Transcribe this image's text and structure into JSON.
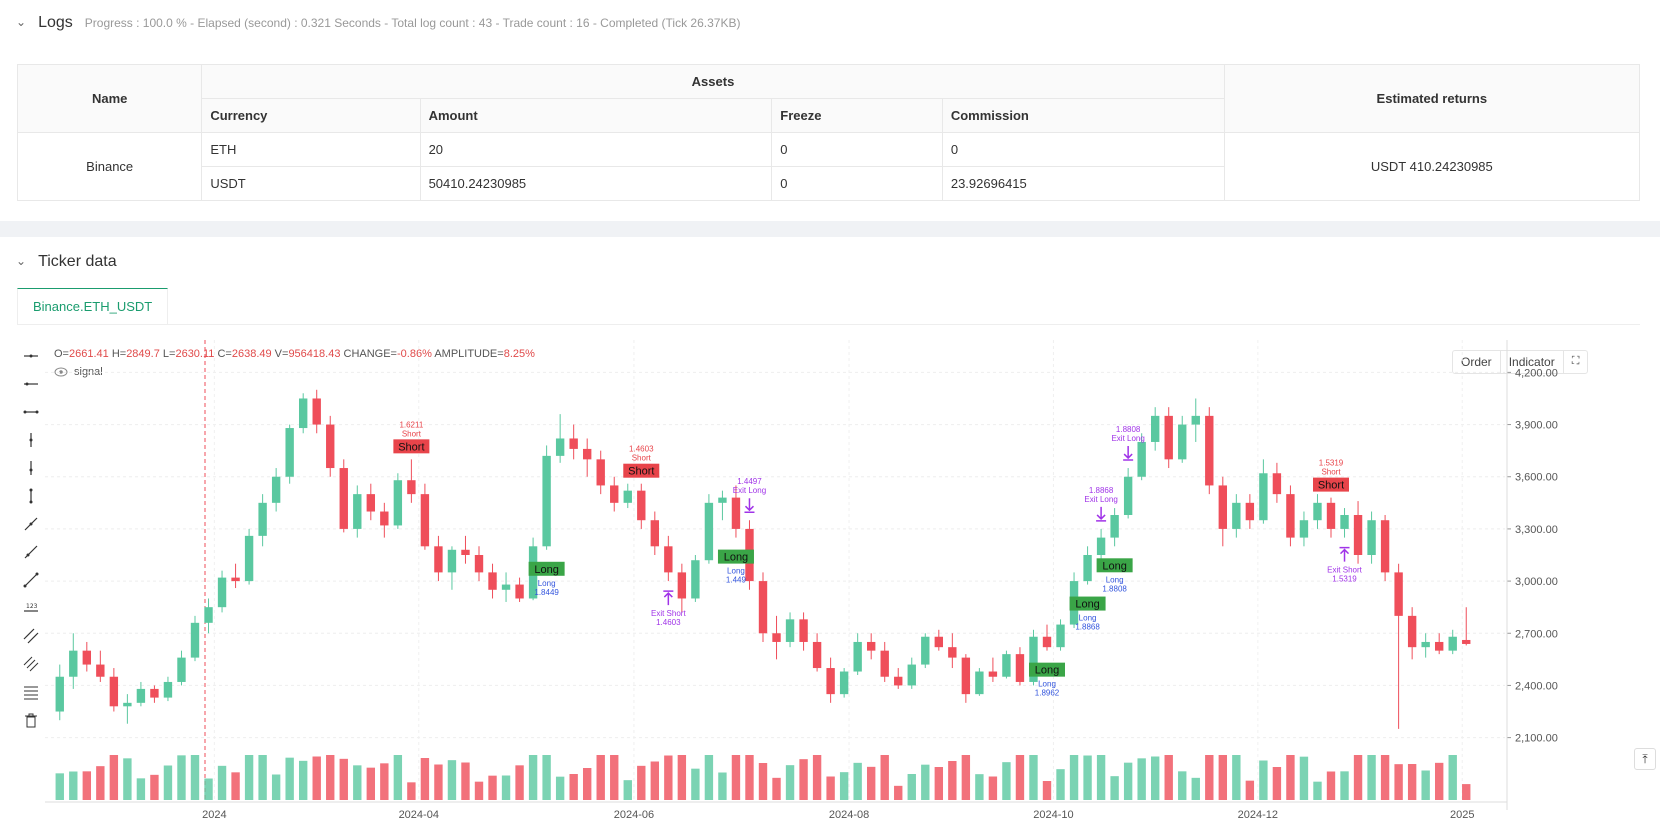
{
  "logs": {
    "title": "Logs",
    "summary": "Progress : 100.0 % - Elapsed (second) : 0.321  Seconds - Total log count : 43 - Trade count : 16 - Completed (Tick 26.37KB)"
  },
  "assets_table": {
    "name_header": "Name",
    "assets_header": "Assets",
    "returns_header": "Estimated returns",
    "columns": [
      "Currency",
      "Amount",
      "Freeze",
      "Commission"
    ],
    "exchange": "Binance",
    "rows": [
      {
        "currency": "ETH",
        "amount": "20",
        "freeze": "0",
        "commission": "0"
      },
      {
        "currency": "USDT",
        "amount": "50410.24230985",
        "freeze": "0",
        "commission": "23.92696415"
      }
    ],
    "estimated_returns": "USDT 410.24230985"
  },
  "ticker": {
    "title": "Ticker data",
    "tab": "Binance.ETH_USDT"
  },
  "ohlc": {
    "o_label": "O=",
    "o": "2661.41",
    "h_label": "H=",
    "h": "2849.7",
    "l_label": "L=",
    "l": "2630.11",
    "c_label": "C=",
    "c": "2638.49",
    "v_label": "V=",
    "v": "956418.43",
    "change_label": "CHANGE=",
    "change": "-0.86%",
    "amp_label": "AMPLITUDE=",
    "amp": "8.25%"
  },
  "signal_label": "signal",
  "chart_buttons": [
    "Order",
    "Indicator"
  ],
  "colors": {
    "up": "#5ac8a0",
    "down": "#ef4e5a",
    "long": "#3aa547",
    "short": "#e8444a",
    "exit": "#a033e8",
    "accent": "#1a9c6e"
  },
  "chart_data": {
    "type": "candlestick",
    "x_ticks": [
      "2024",
      "2024-04",
      "2024-06",
      "2024-08",
      "2024-10",
      "2024-12",
      "2025"
    ],
    "y_ticks": [
      "4,200.00",
      "3,900.00",
      "3,600.00",
      "3,300.00",
      "3,000.00",
      "2,700.00",
      "2,400.00",
      "2,100.00"
    ],
    "ylim": [
      2000,
      4300
    ],
    "series": [
      {
        "t": 0,
        "v": [
          2250,
          2520,
          2200,
          2450
        ]
      },
      {
        "t": 1,
        "v": [
          2450,
          2700,
          2380,
          2600
        ]
      },
      {
        "t": 2,
        "v": [
          2600,
          2650,
          2480,
          2520
        ]
      },
      {
        "t": 3,
        "v": [
          2520,
          2600,
          2420,
          2450
        ]
      },
      {
        "t": 4,
        "v": [
          2450,
          2500,
          2250,
          2280
        ]
      },
      {
        "t": 5,
        "v": [
          2280,
          2350,
          2180,
          2300
        ]
      },
      {
        "t": 6,
        "v": [
          2300,
          2420,
          2280,
          2380
        ]
      },
      {
        "t": 7,
        "v": [
          2380,
          2400,
          2300,
          2330
        ]
      },
      {
        "t": 8,
        "v": [
          2330,
          2450,
          2310,
          2420
        ]
      },
      {
        "t": 9,
        "v": [
          2420,
          2600,
          2400,
          2560
        ]
      },
      {
        "t": 10,
        "v": [
          2560,
          2800,
          2540,
          2760
        ]
      },
      {
        "t": 11,
        "v": [
          2760,
          2900,
          2700,
          2850
        ]
      },
      {
        "t": 12,
        "v": [
          2850,
          3060,
          2820,
          3020
        ]
      },
      {
        "t": 13,
        "v": [
          3020,
          3100,
          2960,
          3000
        ]
      },
      {
        "t": 14,
        "v": [
          3000,
          3300,
          2980,
          3260
        ]
      },
      {
        "t": 15,
        "v": [
          3260,
          3500,
          3200,
          3450
        ]
      },
      {
        "t": 16,
        "v": [
          3450,
          3650,
          3400,
          3600
        ]
      },
      {
        "t": 17,
        "v": [
          3600,
          3900,
          3560,
          3880
        ]
      },
      {
        "t": 18,
        "v": [
          3880,
          4080,
          3850,
          4050
        ]
      },
      {
        "t": 19,
        "v": [
          4050,
          4100,
          3850,
          3900
        ]
      },
      {
        "t": 20,
        "v": [
          3900,
          3950,
          3600,
          3650
        ]
      },
      {
        "t": 21,
        "v": [
          3650,
          3700,
          3280,
          3300
        ]
      },
      {
        "t": 22,
        "v": [
          3300,
          3550,
          3250,
          3500
        ]
      },
      {
        "t": 23,
        "v": [
          3500,
          3560,
          3350,
          3400
        ]
      },
      {
        "t": 24,
        "v": [
          3400,
          3450,
          3250,
          3320
        ]
      },
      {
        "t": 25,
        "v": [
          3320,
          3620,
          3300,
          3580
        ]
      },
      {
        "t": 26,
        "v": [
          3580,
          3700,
          3450,
          3500
        ]
      },
      {
        "t": 27,
        "v": [
          3500,
          3560,
          3180,
          3200
        ]
      },
      {
        "t": 28,
        "v": [
          3200,
          3260,
          3000,
          3050
        ]
      },
      {
        "t": 29,
        "v": [
          3050,
          3200,
          2950,
          3180
        ]
      },
      {
        "t": 30,
        "v": [
          3180,
          3260,
          3100,
          3150
        ]
      },
      {
        "t": 31,
        "v": [
          3150,
          3200,
          3000,
          3050
        ]
      },
      {
        "t": 32,
        "v": [
          3050,
          3100,
          2900,
          2950
        ]
      },
      {
        "t": 33,
        "v": [
          2950,
          3050,
          2880,
          2980
        ]
      },
      {
        "t": 34,
        "v": [
          2980,
          3020,
          2880,
          2900
        ]
      },
      {
        "t": 35,
        "v": [
          2900,
          3250,
          2890,
          3200
        ]
      },
      {
        "t": 36,
        "v": [
          3200,
          3780,
          3180,
          3720
        ]
      },
      {
        "t": 37,
        "v": [
          3720,
          3960,
          3680,
          3820
        ]
      },
      {
        "t": 38,
        "v": [
          3820,
          3900,
          3700,
          3760
        ]
      },
      {
        "t": 39,
        "v": [
          3760,
          3820,
          3600,
          3700
        ]
      },
      {
        "t": 40,
        "v": [
          3700,
          3750,
          3500,
          3550
        ]
      },
      {
        "t": 41,
        "v": [
          3550,
          3600,
          3400,
          3450
        ]
      },
      {
        "t": 42,
        "v": [
          3450,
          3560,
          3420,
          3520
        ]
      },
      {
        "t": 43,
        "v": [
          3520,
          3560,
          3300,
          3350
        ]
      },
      {
        "t": 44,
        "v": [
          3350,
          3400,
          3150,
          3200
        ]
      },
      {
        "t": 45,
        "v": [
          3200,
          3260,
          3000,
          3050
        ]
      },
      {
        "t": 46,
        "v": [
          3050,
          3100,
          2820,
          2900
        ]
      },
      {
        "t": 47,
        "v": [
          2900,
          3150,
          2880,
          3120
        ]
      },
      {
        "t": 48,
        "v": [
          3120,
          3500,
          3100,
          3450
        ]
      },
      {
        "t": 49,
        "v": [
          3450,
          3520,
          3350,
          3480
        ]
      },
      {
        "t": 50,
        "v": [
          3480,
          3550,
          3250,
          3300
        ]
      },
      {
        "t": 51,
        "v": [
          3300,
          3350,
          2950,
          3000
        ]
      },
      {
        "t": 52,
        "v": [
          3000,
          3050,
          2650,
          2700
        ]
      },
      {
        "t": 53,
        "v": [
          2700,
          2800,
          2550,
          2650
        ]
      },
      {
        "t": 54,
        "v": [
          2650,
          2820,
          2620,
          2780
        ]
      },
      {
        "t": 55,
        "v": [
          2780,
          2820,
          2600,
          2650
        ]
      },
      {
        "t": 56,
        "v": [
          2650,
          2700,
          2480,
          2500
        ]
      },
      {
        "t": 57,
        "v": [
          2500,
          2560,
          2300,
          2350
        ]
      },
      {
        "t": 58,
        "v": [
          2350,
          2500,
          2330,
          2480
        ]
      },
      {
        "t": 59,
        "v": [
          2480,
          2700,
          2460,
          2650
        ]
      },
      {
        "t": 60,
        "v": [
          2650,
          2700,
          2550,
          2600
        ]
      },
      {
        "t": 61,
        "v": [
          2600,
          2650,
          2420,
          2450
        ]
      },
      {
        "t": 62,
        "v": [
          2450,
          2500,
          2380,
          2400
        ]
      },
      {
        "t": 63,
        "v": [
          2400,
          2560,
          2380,
          2520
        ]
      },
      {
        "t": 64,
        "v": [
          2520,
          2700,
          2500,
          2680
        ]
      },
      {
        "t": 65,
        "v": [
          2680,
          2720,
          2600,
          2620
        ]
      },
      {
        "t": 66,
        "v": [
          2620,
          2700,
          2500,
          2560
        ]
      },
      {
        "t": 67,
        "v": [
          2560,
          2580,
          2300,
          2350
        ]
      },
      {
        "t": 68,
        "v": [
          2350,
          2500,
          2340,
          2480
        ]
      },
      {
        "t": 69,
        "v": [
          2480,
          2560,
          2420,
          2450
        ]
      },
      {
        "t": 70,
        "v": [
          2450,
          2600,
          2440,
          2580
        ]
      },
      {
        "t": 71,
        "v": [
          2580,
          2620,
          2400,
          2420
        ]
      },
      {
        "t": 72,
        "v": [
          2420,
          2720,
          2400,
          2680
        ]
      },
      {
        "t": 73,
        "v": [
          2680,
          2750,
          2600,
          2620
        ]
      },
      {
        "t": 74,
        "v": [
          2620,
          2780,
          2600,
          2750
        ]
      },
      {
        "t": 75,
        "v": [
          2750,
          3050,
          2730,
          3000
        ]
      },
      {
        "t": 76,
        "v": [
          3000,
          3200,
          2980,
          3150
        ]
      },
      {
        "t": 77,
        "v": [
          3150,
          3300,
          3100,
          3250
        ]
      },
      {
        "t": 78,
        "v": [
          3250,
          3420,
          3200,
          3380
        ]
      },
      {
        "t": 79,
        "v": [
          3380,
          3650,
          3360,
          3600
        ]
      },
      {
        "t": 80,
        "v": [
          3600,
          3850,
          3580,
          3800
        ]
      },
      {
        "t": 81,
        "v": [
          3800,
          4000,
          3750,
          3950
        ]
      },
      {
        "t": 82,
        "v": [
          3950,
          4000,
          3650,
          3700
        ]
      },
      {
        "t": 83,
        "v": [
          3700,
          3950,
          3680,
          3900
        ]
      },
      {
        "t": 84,
        "v": [
          3900,
          4050,
          3800,
          3950
        ]
      },
      {
        "t": 85,
        "v": [
          3950,
          4000,
          3500,
          3550
        ]
      },
      {
        "t": 86,
        "v": [
          3550,
          3600,
          3200,
          3300
        ]
      },
      {
        "t": 87,
        "v": [
          3300,
          3500,
          3250,
          3450
        ]
      },
      {
        "t": 88,
        "v": [
          3450,
          3500,
          3300,
          3350
        ]
      },
      {
        "t": 89,
        "v": [
          3350,
          3700,
          3330,
          3620
        ]
      },
      {
        "t": 90,
        "v": [
          3620,
          3680,
          3450,
          3500
        ]
      },
      {
        "t": 91,
        "v": [
          3500,
          3550,
          3200,
          3250
        ]
      },
      {
        "t": 92,
        "v": [
          3250,
          3400,
          3200,
          3350
        ]
      },
      {
        "t": 93,
        "v": [
          3350,
          3500,
          3300,
          3450
        ]
      },
      {
        "t": 94,
        "v": [
          3450,
          3480,
          3250,
          3300
        ]
      },
      {
        "t": 95,
        "v": [
          3300,
          3420,
          3250,
          3380
        ]
      },
      {
        "t": 96,
        "v": [
          3380,
          3460,
          3100,
          3150
        ]
      },
      {
        "t": 97,
        "v": [
          3150,
          3400,
          3100,
          3350
        ]
      },
      {
        "t": 98,
        "v": [
          3350,
          3380,
          3000,
          3050
        ]
      },
      {
        "t": 99,
        "v": [
          3050,
          3100,
          2150,
          2800
        ]
      },
      {
        "t": 100,
        "v": [
          2800,
          2850,
          2550,
          2620
        ]
      },
      {
        "t": 101,
        "v": [
          2620,
          2700,
          2560,
          2650
        ]
      },
      {
        "t": 102,
        "v": [
          2650,
          2700,
          2580,
          2600
        ]
      },
      {
        "t": 103,
        "v": [
          2600,
          2720,
          2580,
          2680
        ]
      },
      {
        "t": 104,
        "v": [
          2661.41,
          2849.7,
          2630.11,
          2638.49
        ]
      }
    ],
    "markers": [
      {
        "kind": "short",
        "label": "Short",
        "price_label": "1.6211",
        "sub": "Short",
        "t": 26
      },
      {
        "kind": "long",
        "label": "Long",
        "price_label": "1.8449",
        "sub": "Long",
        "t": 36
      },
      {
        "kind": "short",
        "label": "Short",
        "price_label": "1.4603",
        "sub": "Short",
        "t": 43
      },
      {
        "kind": "exit_short",
        "label": "Exit Short",
        "price_label": "1.4603",
        "t": 45
      },
      {
        "kind": "exit_long",
        "label": "Exit Long",
        "price_label": "1.4497",
        "t": 51
      },
      {
        "kind": "long",
        "label": "Long",
        "price_label": "1.449",
        "sub": "Long",
        "t": 50
      },
      {
        "kind": "long",
        "label": "Long",
        "price_label": "1.8962",
        "sub": "Long",
        "t": 73
      },
      {
        "kind": "long",
        "label": "Long",
        "price_label": "1.8868",
        "sub": "Long",
        "t": 76
      },
      {
        "kind": "long",
        "label": "Long",
        "price_label": "1.8808",
        "sub": "Long",
        "t": 78
      },
      {
        "kind": "exit_long",
        "label": "Exit Long",
        "price_label": "1.8868",
        "t": 77
      },
      {
        "kind": "exit_long",
        "label": "Exit Long",
        "price_label": "1.8808",
        "t": 79
      },
      {
        "kind": "short",
        "label": "Short",
        "price_label": "1.5319",
        "sub": "Short",
        "t": 94
      },
      {
        "kind": "exit_short",
        "label": "Exit Short",
        "price_label": "1.5319",
        "t": 95
      }
    ]
  }
}
